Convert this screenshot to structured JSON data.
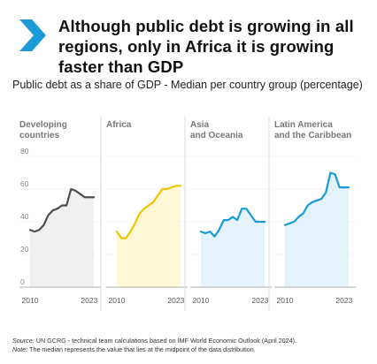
{
  "header": {
    "title": "Although public debt is growing in all regions, only in Africa it is growing faster than GDP",
    "subtitle": "Public debt as a share of GDP - Median per country group (percentage)",
    "chevron_icon": "chevron-right-icon",
    "chevron_color": "#1a9ad6"
  },
  "chart_data": [
    {
      "type": "area",
      "title": "Developing\ncountries",
      "x": [
        2010,
        2011,
        2012,
        2013,
        2014,
        2015,
        2016,
        2017,
        2018,
        2019,
        2020,
        2021,
        2022,
        2023,
        2024
      ],
      "values": [
        35,
        34,
        35,
        38,
        44,
        47,
        48,
        50,
        50,
        60,
        59,
        57,
        55,
        55,
        55
      ],
      "xticks": [
        "2010",
        "2023"
      ],
      "yticks": [
        "0",
        "20",
        "40",
        "60",
        "80"
      ],
      "ylim": [
        0,
        80
      ],
      "line_color": "#4d4d4d",
      "fill_color": "#f0f0f0",
      "show_y_labels": true
    },
    {
      "type": "area",
      "title": "Africa",
      "x": [
        2010,
        2011,
        2012,
        2013,
        2014,
        2015,
        2016,
        2017,
        2018,
        2019,
        2020,
        2021,
        2022,
        2023,
        2024
      ],
      "values": [
        34,
        30,
        30,
        34,
        39,
        45,
        48,
        50,
        52,
        56,
        60,
        60,
        61,
        62,
        62
      ],
      "xticks": [
        "2010",
        "2023"
      ],
      "yticks": [
        "0",
        "20",
        "40",
        "60",
        "80"
      ],
      "ylim": [
        0,
        80
      ],
      "line_color": "#f2c400",
      "fill_color": "#fff8d6",
      "show_y_labels": false
    },
    {
      "type": "area",
      "title": "Asia\nand Oceania",
      "x": [
        2010,
        2011,
        2012,
        2013,
        2014,
        2015,
        2016,
        2017,
        2018,
        2019,
        2020,
        2021,
        2022,
        2023,
        2024
      ],
      "values": [
        34,
        33,
        34,
        31,
        35,
        41,
        41,
        43,
        41,
        48,
        48,
        44,
        40,
        40,
        40
      ],
      "xticks": [
        "2010",
        "2023"
      ],
      "yticks": [
        "0",
        "20",
        "40",
        "60",
        "80"
      ],
      "ylim": [
        0,
        80
      ],
      "line_color": "#1a9ad6",
      "fill_color": "#e4f3fb",
      "show_y_labels": false
    },
    {
      "type": "area",
      "title": "Latin America\nand the Caribbean",
      "x": [
        2010,
        2011,
        2012,
        2013,
        2014,
        2015,
        2016,
        2017,
        2018,
        2019,
        2020,
        2021,
        2022,
        2023,
        2024
      ],
      "values": [
        38,
        39,
        40,
        43,
        45,
        50,
        52,
        53,
        54,
        58,
        70,
        69,
        61,
        61,
        61
      ],
      "xticks": [
        "2010",
        "2023"
      ],
      "yticks": [
        "0",
        "20",
        "40",
        "60",
        "80"
      ],
      "ylim": [
        0,
        80
      ],
      "line_color": "#1a9ad6",
      "fill_color": "#e4f3fb",
      "show_y_labels": false
    }
  ],
  "footer": {
    "source_label": "Source:",
    "source_text": " UN GCRG - technical team calculations based on IMF World Economic Outlook (April 2024).",
    "note_label": "Note:",
    "note_text": " The median represents the value that lies at the midpoint of the data distribution."
  }
}
